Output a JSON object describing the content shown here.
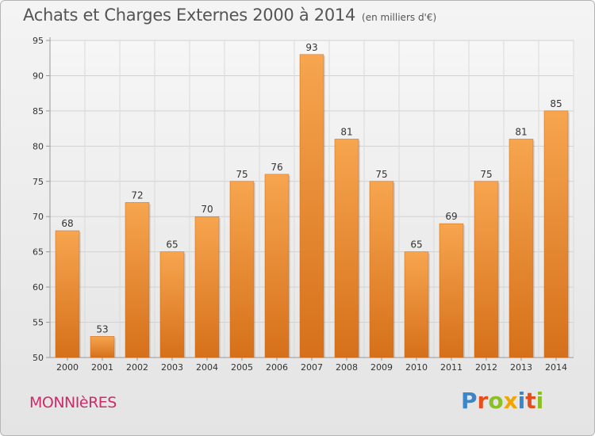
{
  "header": {
    "title": "Achats et Charges Externes 2000 à 2014",
    "unit": "(en milliers d'€)"
  },
  "location": "MONNIèRES",
  "logo": {
    "text": "Proxiti",
    "letters": [
      {
        "ch": "P",
        "color": "#3a86c8"
      },
      {
        "ch": "r",
        "color": "#e84e1b"
      },
      {
        "ch": "o",
        "color": "#8cbf26"
      },
      {
        "ch": "x",
        "color": "#f0a500"
      },
      {
        "ch": "i",
        "color": "#3a86c8"
      },
      {
        "ch": "t",
        "color": "#e84e1b"
      },
      {
        "ch": "i",
        "color": "#8cbf26"
      }
    ]
  },
  "chart_data": {
    "type": "bar",
    "categories": [
      "2000",
      "2001",
      "2002",
      "2003",
      "2004",
      "2005",
      "2006",
      "2007",
      "2008",
      "2009",
      "2010",
      "2011",
      "2012",
      "2013",
      "2014"
    ],
    "values": [
      68,
      53,
      72,
      65,
      70,
      75,
      76,
      93,
      81,
      75,
      65,
      69,
      75,
      81,
      85
    ],
    "title": "Achats et Charges Externes 2000 à 2014",
    "ylim": [
      50,
      95
    ],
    "yticks": [
      50,
      55,
      60,
      65,
      70,
      75,
      80,
      85,
      90,
      95
    ],
    "grid": true,
    "bar_color_top": "#f7a54f",
    "bar_color_bottom": "#d6701a"
  }
}
